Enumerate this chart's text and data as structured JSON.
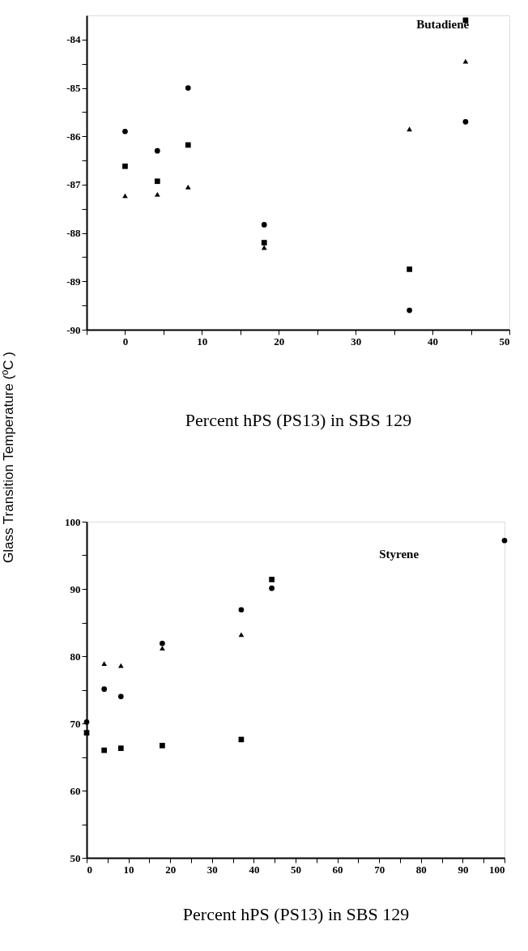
{
  "chart_data": [
    {
      "type": "scatter",
      "ylabel": "Glass Transition Temperature (ºC )",
      "xlabel": "Percent hPS (PS13) in SBS 129",
      "annotations": [
        "Butadiene"
      ],
      "grid": false,
      "x": [
        0,
        4.2,
        8.2,
        18.1,
        37,
        44.3
      ],
      "series": [
        {
          "color": "#000000",
          "marker": "circle",
          "values": [
            -85.9,
            -86.3,
            -85.0,
            -87.83,
            -89.6,
            -85.7
          ]
        },
        {
          "color": "#000000",
          "marker": "square",
          "values": [
            -86.62,
            -86.93,
            -86.18,
            -88.2,
            -88.75,
            -83.6
          ]
        },
        {
          "color": "#000000",
          "marker": "triangle",
          "values": [
            -87.23,
            -87.2,
            -87.05,
            -88.3,
            -85.85,
            -84.45
          ]
        }
      ],
      "xlim": [
        -5,
        50
      ],
      "ylim": [
        -90,
        -83.5
      ],
      "xticks": [
        {
          "value": -5,
          "label": null
        },
        0,
        {
          "value": 5,
          "label": null
        },
        10,
        {
          "value": 15,
          "label": null
        },
        20,
        {
          "value": 25,
          "label": null
        },
        30,
        {
          "value": 35,
          "label": null
        },
        40,
        {
          "value": 45,
          "label": null
        },
        50
      ],
      "yticks": [
        -90,
        {
          "value": -89.5,
          "label": null
        },
        -89,
        {
          "value": -88.5,
          "label": null
        },
        -88,
        {
          "value": -87.5,
          "label": null
        },
        -87,
        {
          "value": -86.5,
          "label": null
        },
        -86,
        {
          "value": -85.5,
          "label": null
        },
        -85,
        {
          "value": -84.5,
          "label": null
        },
        -84
      ]
    },
    {
      "type": "scatter",
      "xlabel": "Percent hPS (PS13) in SBS 129",
      "annotations": [
        "Styrene"
      ],
      "grid": false,
      "x": [
        0,
        4.2,
        8.2,
        18.1,
        37,
        44.3,
        100
      ],
      "series": [
        {
          "color": "#000000",
          "marker": "circle",
          "values": [
            70.2,
            75.1,
            74.0,
            81.9,
            86.9,
            90.1,
            97.2
          ]
        },
        {
          "color": "#000000",
          "marker": "square",
          "values": [
            68.6,
            66.0,
            66.3,
            66.7,
            67.6,
            91.4,
            null
          ]
        },
        {
          "color": "#000000",
          "marker": "triangle",
          "values": [
            null,
            78.9,
            78.6,
            81.2,
            83.2,
            null,
            null
          ]
        }
      ],
      "xlim": [
        0,
        100
      ],
      "ylim": [
        50,
        100
      ],
      "xticks": [
        0,
        {
          "value": 5,
          "label": null
        },
        10,
        {
          "value": 15,
          "label": null
        },
        20,
        {
          "value": 25,
          "label": null
        },
        30,
        {
          "value": 35,
          "label": null
        },
        40,
        {
          "value": 45,
          "label": null
        },
        50,
        {
          "value": 55,
          "label": null
        },
        60,
        {
          "value": 65,
          "label": null
        },
        70,
        {
          "value": 75,
          "label": null
        },
        80,
        {
          "value": 85,
          "label": null
        },
        90,
        {
          "value": 95,
          "label": null
        },
        100
      ],
      "yticks": [
        50,
        {
          "value": 55,
          "label": null
        },
        60,
        {
          "value": 65,
          "label": null
        },
        70,
        {
          "value": 75,
          "label": null
        },
        80,
        {
          "value": 85,
          "label": null
        },
        90,
        {
          "value": 95,
          "label": null
        },
        100
      ]
    }
  ]
}
